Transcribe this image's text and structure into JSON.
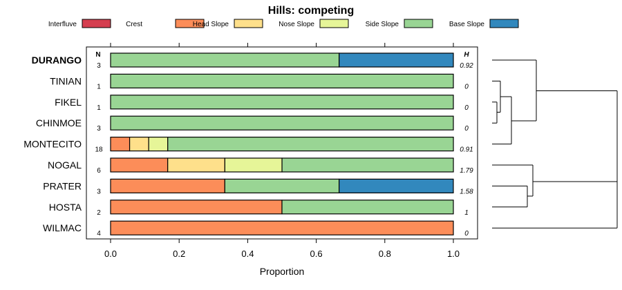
{
  "chart_data": {
    "type": "stacked-bar",
    "title": "Hills: competing",
    "xlabel": "Proportion",
    "xlim": [
      0,
      1
    ],
    "x_ticks": [
      "0.0",
      "0.2",
      "0.4",
      "0.6",
      "0.8",
      "1.0"
    ],
    "x_tick_values": [
      0,
      0.2,
      0.4,
      0.6,
      0.8,
      1.0
    ],
    "n_header": "N",
    "h_header": "H",
    "legend_position": "top",
    "legend": [
      {
        "name": "Interfluve",
        "color": "#D53E4F"
      },
      {
        "name": "Crest",
        "color": "#FC8D59"
      },
      {
        "name": "Head Slope",
        "color": "#FEE08B"
      },
      {
        "name": "Nose Slope",
        "color": "#E6F598"
      },
      {
        "name": "Side Slope",
        "color": "#99D594"
      },
      {
        "name": "Base Slope",
        "color": "#3288BD"
      }
    ],
    "categories": [
      "DURANGO",
      "TINIAN",
      "FIKEL",
      "CHINMOE",
      "MONTECITO",
      "NOGAL",
      "PRATER",
      "HOSTA",
      "WILMAC"
    ],
    "highlighted": "DURANGO",
    "n": [
      "3",
      "1",
      "1",
      "3",
      "18",
      "6",
      "3",
      "2",
      "4"
    ],
    "h": [
      "0.92",
      "0",
      "0",
      "0",
      "0.91",
      "1.79",
      "1.58",
      "1",
      "0"
    ],
    "series": [
      {
        "name": "Interfluve",
        "values": [
          0,
          0,
          0,
          0,
          0,
          0,
          0,
          0,
          0
        ]
      },
      {
        "name": "Crest",
        "values": [
          0,
          0,
          0,
          0,
          0.0556,
          0.1667,
          0.3333,
          0.5,
          1.0
        ]
      },
      {
        "name": "Head Slope",
        "values": [
          0,
          0,
          0,
          0,
          0.0556,
          0.1667,
          0,
          0,
          0
        ]
      },
      {
        "name": "Nose Slope",
        "values": [
          0,
          0,
          0,
          0,
          0.0556,
          0.1667,
          0,
          0,
          0
        ]
      },
      {
        "name": "Side Slope",
        "values": [
          0.6667,
          1.0,
          1.0,
          1.0,
          0.8333,
          0.5,
          0.3333,
          0.5,
          0
        ]
      },
      {
        "name": "Base Slope",
        "values": [
          0.3333,
          0,
          0,
          0,
          0,
          0,
          0.3333,
          0,
          0
        ]
      }
    ],
    "dendrogram": "hierarchical clustering of rows (unlabeled)"
  }
}
